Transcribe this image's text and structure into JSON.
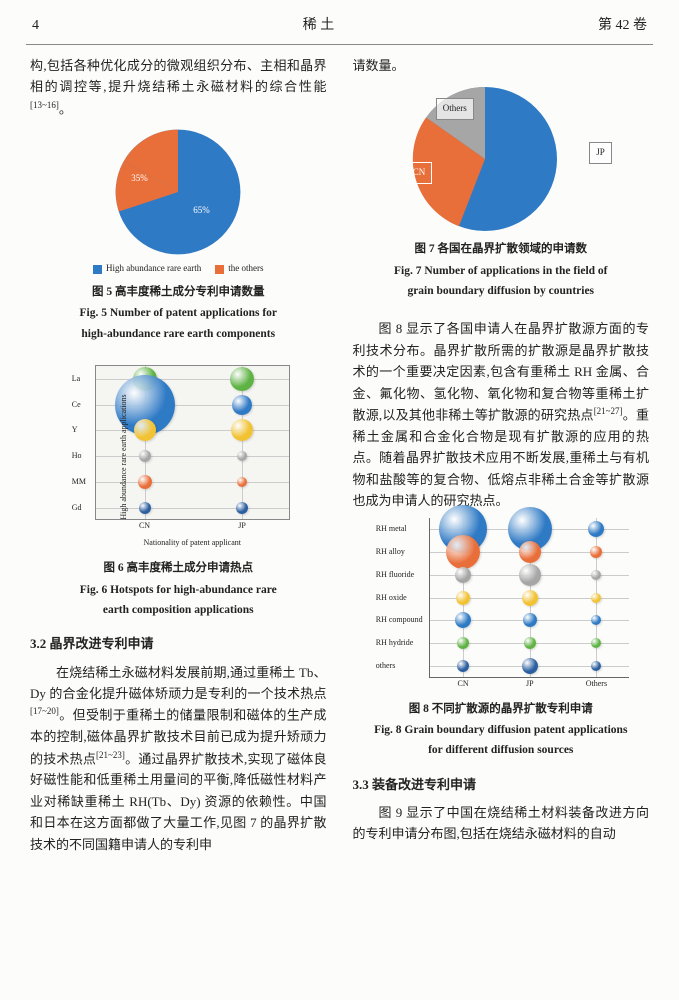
{
  "header": {
    "page": "4",
    "journal": "稀  土",
    "volume": "第 42 卷"
  },
  "colors": {
    "blue": "#2f7ac5",
    "orange": "#e96f3a",
    "grey": "#a6a6a6",
    "green": "#5fb345",
    "yellow": "#f1c232",
    "dblue": "#2b5fa0",
    "brown": "#8d5a2e"
  },
  "leftcol": {
    "p1a": "构,包括各种优化成分的微观组织分布、主相和晶界相的调控等,提升烧结稀土永磁材料的综合性能",
    "p1sup": "[13~16]",
    "p1b": "。",
    "fig5": {
      "values": {
        "high": 65,
        "others": 35
      },
      "legend": [
        "High abundance rare earth",
        "the others"
      ],
      "slice_colors": [
        "#2f7ac5",
        "#e96f3a"
      ],
      "label_65": "65%",
      "label_35": "35%",
      "cn": "图 5  高丰度稀土成分专利申请数量",
      "en1": "Fig. 5  Number of patent applications for",
      "en2": "high-abundance rare earth components"
    },
    "fig6": {
      "y_categories": [
        "La",
        "Ce",
        "Y",
        "Ho",
        "MM",
        "Gd"
      ],
      "x_categories": [
        "CN",
        "JP"
      ],
      "y_axis": "High abundance rare earth applications",
      "x_axis": "Nationality of patent applicant",
      "bubbles": [
        {
          "x": 0,
          "y": 0,
          "r": 12,
          "c": "#5fb345"
        },
        {
          "x": 0,
          "y": 1,
          "r": 30,
          "c": "#2f7ac5"
        },
        {
          "x": 0,
          "y": 2,
          "r": 11,
          "c": "#f1c232"
        },
        {
          "x": 0,
          "y": 3,
          "r": 6,
          "c": "#a6a6a6"
        },
        {
          "x": 0,
          "y": 4,
          "r": 7,
          "c": "#e96f3a"
        },
        {
          "x": 0,
          "y": 5,
          "r": 6,
          "c": "#2b5fa0"
        },
        {
          "x": 1,
          "y": 0,
          "r": 12,
          "c": "#5fb345"
        },
        {
          "x": 1,
          "y": 1,
          "r": 10,
          "c": "#2f7ac5"
        },
        {
          "x": 1,
          "y": 2,
          "r": 11,
          "c": "#f1c232"
        },
        {
          "x": 1,
          "y": 3,
          "r": 5,
          "c": "#a6a6a6"
        },
        {
          "x": 1,
          "y": 4,
          "r": 5,
          "c": "#e96f3a"
        },
        {
          "x": 1,
          "y": 5,
          "r": 6,
          "c": "#2b5fa0"
        }
      ],
      "cn": "图 6  高丰度稀土成分申请热点",
      "en1": "Fig. 6  Hotspots for high-abundance rare",
      "en2": "earth composition applications"
    },
    "sec32": "3.2  晶界改进专利申请",
    "p2a": "在烧结稀土永磁材料发展前期,通过重稀土 Tb、Dy 的合金化提升磁体矫顽力是专利的一个技术热点",
    "p2sup1": "[17~20]",
    "p2b": "。但受制于重稀土的储量限制和磁体的生产成本的控制,磁体晶界扩散技术目前已成为提升矫顽力的技术热点",
    "p2sup2": "[21~23]",
    "p2c": "。通过晶界扩散技术,实现了磁体良好磁性能和低重稀土用量间的平衡,降低磁性材料产业对稀缺重稀土 RH(Tb、Dy) 资源的依赖性。中国和日本在这方面都做了大量工作,见图 7 的晶界扩散技术的不同国籍申请人的专利申"
  },
  "rightcol": {
    "p1": "请数量。",
    "fig7": {
      "slices": [
        {
          "label": "JP",
          "value": 58,
          "c": "#2f7ac5"
        },
        {
          "label": "CN",
          "value": 33,
          "c": "#e96f3a"
        },
        {
          "label": "Others",
          "value": 9,
          "c": "#a6a6a6"
        }
      ],
      "cn": "图 7  各国在晶界扩散领域的申请数",
      "en1": "Fig. 7  Number of applications in the field of",
      "en2": "grain boundary diffusion by countries"
    },
    "p2a": "图 8 显示了各国申请人在晶界扩散源方面的专利技术分布。晶界扩散所需的扩散源是晶界扩散技术的一个重要决定因素,包含有重稀土 RH 金属、合金、氟化物、氢化物、氧化物和复合物等重稀土扩散源,以及其他非稀土等扩散源的研究热点",
    "p2sup": "[21~27]",
    "p2b": "。重稀土金属和合金化合物是现有扩散源的应用的热点。随着晶界扩散技术应用不断发展,重稀土与有机物和盐酸等的复合物、低熔点非稀土合金等扩散源也成为申请人的研究热点。",
    "fig8": {
      "y_categories": [
        "RH metal",
        "RH alloy",
        "RH fluoride",
        "RH oxide",
        "RH compound",
        "RH hydride",
        "others"
      ],
      "x_categories": [
        "CN",
        "JP",
        "Others"
      ],
      "bubbles": [
        {
          "x": 0,
          "y": 0,
          "r": 24,
          "c": "#2f7ac5"
        },
        {
          "x": 0,
          "y": 1,
          "r": 17,
          "c": "#e96f3a"
        },
        {
          "x": 0,
          "y": 2,
          "r": 8,
          "c": "#a6a6a6"
        },
        {
          "x": 0,
          "y": 3,
          "r": 7,
          "c": "#f1c232"
        },
        {
          "x": 0,
          "y": 4,
          "r": 8,
          "c": "#2f7ac5"
        },
        {
          "x": 0,
          "y": 5,
          "r": 6,
          "c": "#5fb345"
        },
        {
          "x": 0,
          "y": 6,
          "r": 6,
          "c": "#2b5fa0"
        },
        {
          "x": 1,
          "y": 0,
          "r": 22,
          "c": "#2f7ac5"
        },
        {
          "x": 1,
          "y": 1,
          "r": 11,
          "c": "#e96f3a"
        },
        {
          "x": 1,
          "y": 2,
          "r": 11,
          "c": "#a6a6a6"
        },
        {
          "x": 1,
          "y": 3,
          "r": 8,
          "c": "#f1c232"
        },
        {
          "x": 1,
          "y": 4,
          "r": 7,
          "c": "#2f7ac5"
        },
        {
          "x": 1,
          "y": 5,
          "r": 6,
          "c": "#5fb345"
        },
        {
          "x": 1,
          "y": 6,
          "r": 8,
          "c": "#2b5fa0"
        },
        {
          "x": 2,
          "y": 0,
          "r": 8,
          "c": "#2f7ac5"
        },
        {
          "x": 2,
          "y": 1,
          "r": 6,
          "c": "#e96f3a"
        },
        {
          "x": 2,
          "y": 2,
          "r": 5,
          "c": "#a6a6a6"
        },
        {
          "x": 2,
          "y": 3,
          "r": 5,
          "c": "#f1c232"
        },
        {
          "x": 2,
          "y": 4,
          "r": 5,
          "c": "#2f7ac5"
        },
        {
          "x": 2,
          "y": 5,
          "r": 5,
          "c": "#5fb345"
        },
        {
          "x": 2,
          "y": 6,
          "r": 5,
          "c": "#2b5fa0"
        }
      ],
      "cn": "图 8  不同扩散源的晶界扩散专利申请",
      "en1": "Fig. 8  Grain boundary diffusion patent applications",
      "en2": "for different diffusion sources"
    },
    "sec33": "3.3  装备改进专利申请",
    "p3": "图 9 显示了中国在烧结稀土材料装备改进方向的专利申请分布图,包括在烧结永磁材料的自动"
  }
}
